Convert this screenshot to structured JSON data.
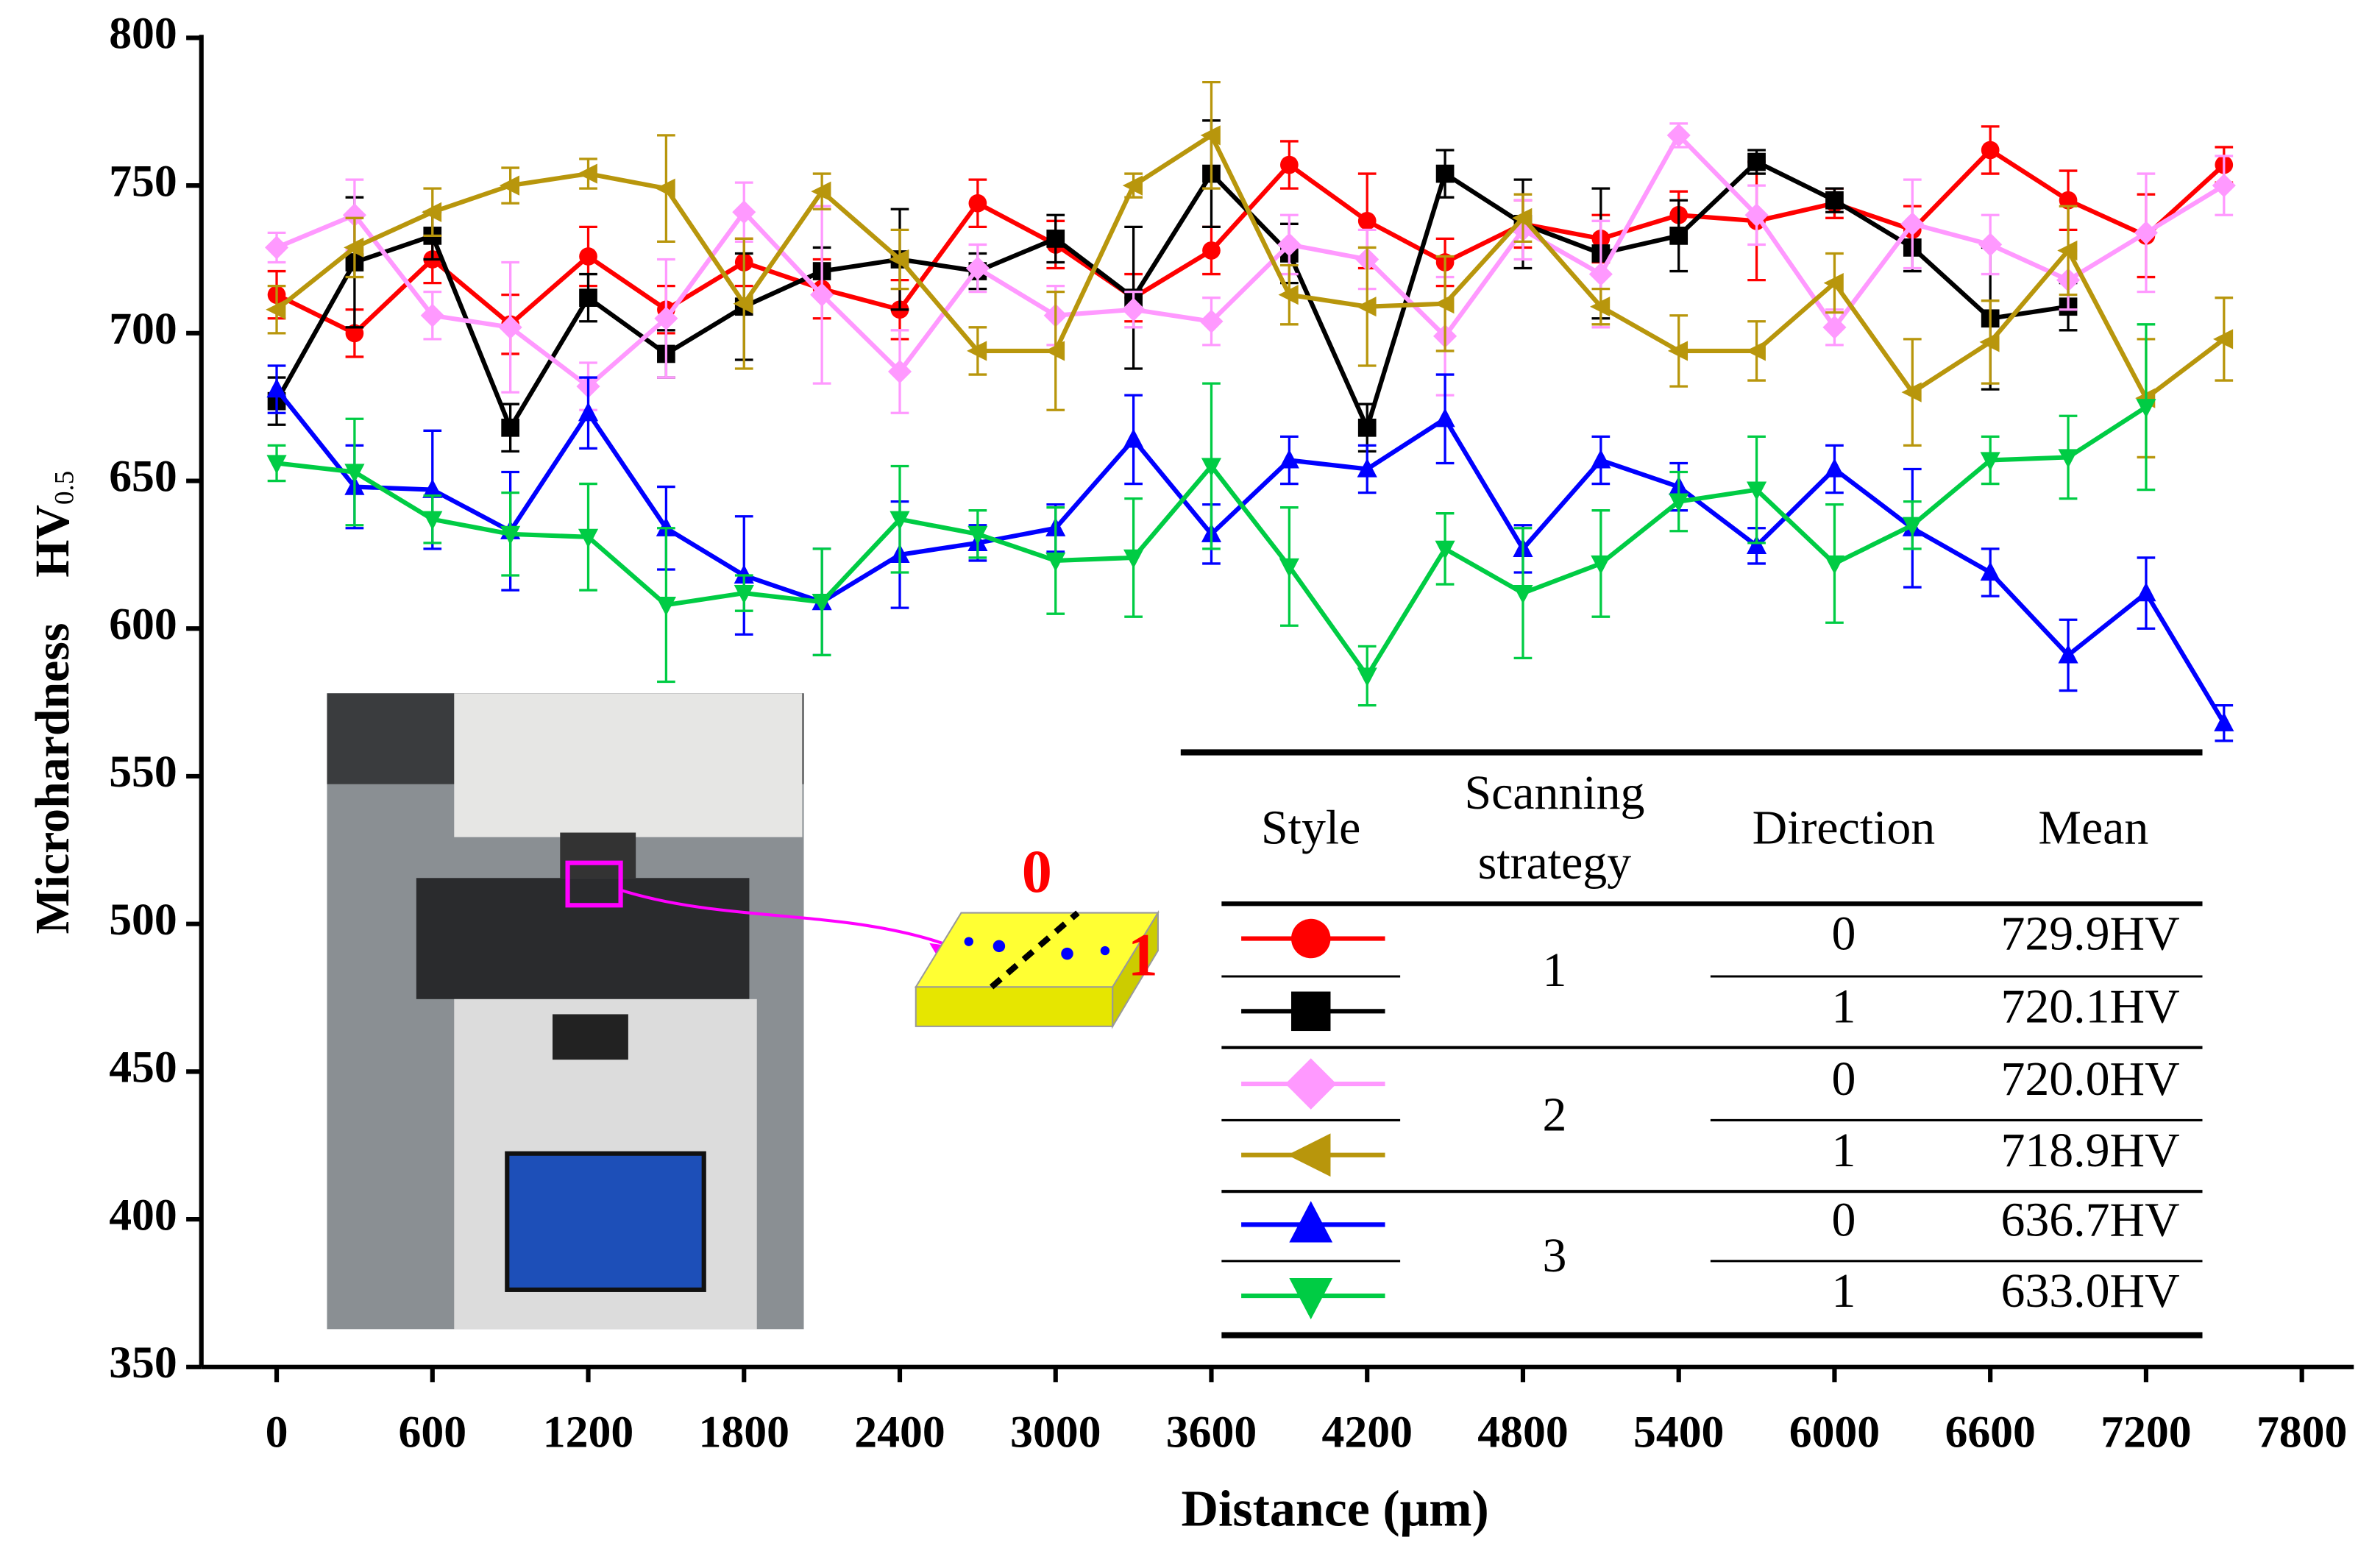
{
  "chart_data": {
    "type": "line",
    "x_label": "Distance (μm)",
    "y_label": "Microhardness",
    "y_label_unit": "HV",
    "y_label_sub": "0.5",
    "xlim": [
      -290,
      8000
    ],
    "xticks": [
      0,
      600,
      1200,
      1800,
      2400,
      3000,
      3600,
      4200,
      4800,
      5400,
      6000,
      6600,
      7200,
      7800
    ],
    "ylim": [
      350,
      800
    ],
    "yticks": [
      350,
      400,
      450,
      500,
      550,
      600,
      650,
      700,
      750,
      800
    ],
    "x": [
      0,
      300,
      600,
      900,
      1200,
      1500,
      1800,
      2100,
      2400,
      2700,
      3000,
      3300,
      3600,
      3900,
      4200,
      4500,
      4800,
      5100,
      5400,
      5700,
      6000,
      6300,
      6600,
      6900,
      7200,
      7500
    ],
    "series": [
      {
        "color": "#ff0000",
        "marker": "circle",
        "values": [
          713,
          700,
          725,
          703,
          726,
          708,
          724,
          715,
          708,
          744,
          730,
          712,
          728,
          757,
          738,
          724,
          737,
          732,
          740,
          738,
          744,
          735,
          762,
          745,
          733,
          757
        ],
        "errors": [
          8,
          8,
          8,
          10,
          10,
          8,
          8,
          10,
          10,
          8,
          8,
          8,
          8,
          8,
          16,
          8,
          8,
          8,
          8,
          20,
          5,
          8,
          8,
          10,
          14,
          6
        ]
      },
      {
        "color": "#000000",
        "marker": "square",
        "values": [
          677,
          724,
          733,
          668,
          712,
          693,
          709,
          721,
          725,
          721,
          732,
          712,
          754,
          727,
          668,
          754,
          737,
          727,
          733,
          758,
          745,
          729,
          705,
          709,
          null,
          null
        ],
        "errors": [
          8,
          22,
          8,
          8,
          8,
          8,
          18,
          8,
          17,
          6,
          8,
          24,
          18,
          10,
          8,
          8,
          15,
          22,
          12,
          4,
          4,
          8,
          24,
          8,
          null,
          null
        ]
      },
      {
        "color": "#ff99ff",
        "marker": "diamond",
        "values": [
          729,
          740,
          706,
          702,
          682,
          705,
          741,
          713,
          687,
          722,
          706,
          708,
          704,
          730,
          725,
          699,
          735,
          720,
          767,
          740,
          702,
          737,
          730,
          718,
          734,
          750
        ],
        "errors": [
          5,
          12,
          8,
          22,
          8,
          20,
          10,
          30,
          14,
          8,
          10,
          6,
          8,
          10,
          10,
          20,
          10,
          18,
          4,
          10,
          6,
          15,
          10,
          10,
          20,
          10
        ]
      },
      {
        "color": "#b8960c",
        "marker": "left",
        "values": [
          708,
          729,
          741,
          750,
          754,
          749,
          710,
          748,
          725,
          694,
          694,
          750,
          767,
          713,
          709,
          710,
          739,
          709,
          694,
          694,
          717,
          680,
          697,
          728,
          678,
          698
        ],
        "errors": [
          8,
          10,
          8,
          6,
          5,
          18,
          22,
          6,
          10,
          8,
          20,
          4,
          18,
          10,
          20,
          16,
          8,
          6,
          12,
          10,
          10,
          18,
          14,
          15,
          20,
          14
        ]
      },
      {
        "color": "#0000ff",
        "marker": "up",
        "values": [
          681,
          648,
          647,
          633,
          673,
          634,
          618,
          609,
          625,
          629,
          634,
          664,
          632,
          657,
          654,
          671,
          627,
          657,
          648,
          628,
          654,
          634,
          619,
          591,
          612,
          568
        ],
        "errors": [
          8,
          14,
          20,
          20,
          12,
          14,
          20,
          18,
          18,
          6,
          8,
          15,
          10,
          8,
          8,
          15,
          8,
          8,
          8,
          6,
          8,
          20,
          8,
          12,
          12,
          6
        ]
      },
      {
        "color": "#00cc44",
        "marker": "down",
        "values": [
          656,
          653,
          637,
          632,
          631,
          608,
          612,
          609,
          637,
          632,
          623,
          624,
          655,
          621,
          584,
          627,
          612,
          622,
          643,
          647,
          622,
          635,
          657,
          658,
          675,
          null
        ],
        "errors": [
          6,
          18,
          8,
          14,
          18,
          26,
          6,
          18,
          18,
          8,
          18,
          20,
          28,
          20,
          10,
          12,
          22,
          18,
          10,
          18,
          20,
          8,
          8,
          14,
          28,
          null
        ]
      }
    ],
    "legend_table": {
      "headers": [
        "Style",
        "Scanning strategy",
        "Direction",
        "Mean"
      ],
      "strategies": [
        "1",
        "2",
        "3"
      ],
      "directions": [
        "0",
        "1",
        "0",
        "1",
        "0",
        "1"
      ],
      "means": [
        "729.9HV",
        "720.1HV",
        "720.0HV",
        "718.9HV",
        "636.7HV",
        "633.0HV"
      ]
    },
    "inset_labels": [
      "0",
      "1"
    ]
  }
}
